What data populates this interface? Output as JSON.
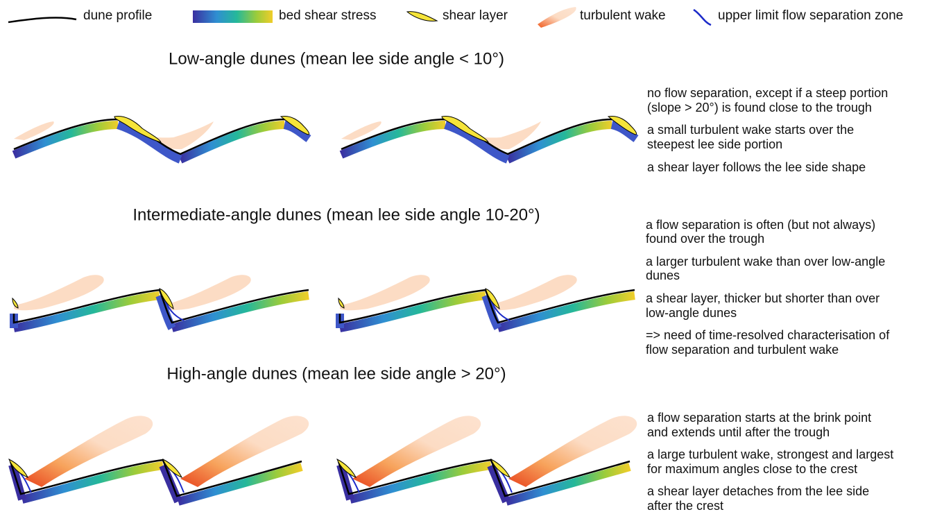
{
  "legend": [
    "dune profile",
    "bed shear stress",
    "shear layer",
    "turbulent wake",
    "upper limit flow separation zone"
  ],
  "sections": [
    {
      "title": "Low-angle dunes (mean lee side angle < 10°)",
      "notes": [
        [
          "no flow separation, except if a steep portion",
          "(slope > 20°) is found close to the trough"
        ],
        [
          "a small turbulent wake starts over the",
          "steepest lee side portion"
        ],
        [
          "a shear layer follows the lee side shape"
        ]
      ]
    },
    {
      "title": "Intermediate-angle dunes (mean lee side angle 10-20°)",
      "notes": [
        [
          "a flow separation is often (but not always)",
          "found over the trough"
        ],
        [
          "a larger turbulent wake than over low-angle",
          "dunes"
        ],
        [
          "a shear layer, thicker but shorter than over",
          "low-angle dunes"
        ],
        [
          "=> need of time-resolved characterisation of",
          "flow separation and turbulent wake"
        ]
      ]
    },
    {
      "title": "High-angle dunes (mean lee side angle > 20°)",
      "notes": [
        [
          "a flow separation starts at the brink point",
          "and extends until after the trough"
        ],
        [
          "a large turbulent wake, strongest and largest",
          "for maximum angles close to the crest"
        ],
        [
          "a shear layer detaches from the lee side",
          "after the crest"
        ]
      ]
    }
  ]
}
